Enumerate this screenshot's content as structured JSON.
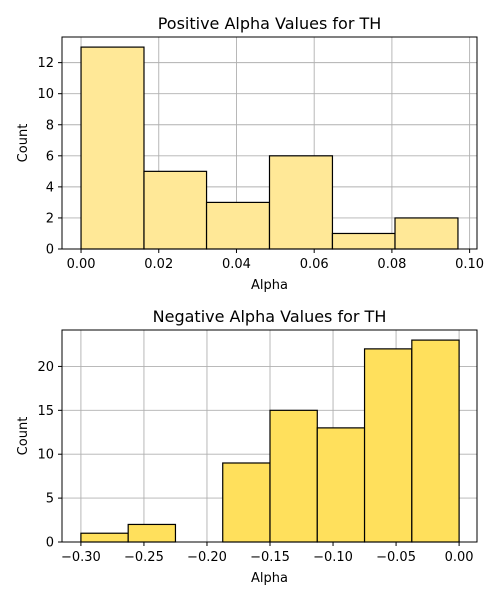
{
  "chart_data": [
    {
      "type": "bar",
      "title": "Positive Alpha Values for TH",
      "xlabel": "Alpha",
      "ylabel": "Count",
      "color": "#ffe897",
      "bins": [
        {
          "start": 0.0,
          "end": 0.0162,
          "count": 13
        },
        {
          "start": 0.0162,
          "end": 0.0323,
          "count": 5
        },
        {
          "start": 0.0323,
          "end": 0.0485,
          "count": 3
        },
        {
          "start": 0.0485,
          "end": 0.0647,
          "count": 6
        },
        {
          "start": 0.0647,
          "end": 0.0808,
          "count": 1
        },
        {
          "start": 0.0808,
          "end": 0.097,
          "count": 2
        }
      ],
      "xlim": [
        -0.0049,
        0.1019
      ],
      "ylim": [
        0,
        13.65
      ],
      "xticks": [
        0.0,
        0.02,
        0.04,
        0.06,
        0.08,
        0.1
      ],
      "xtick_labels": [
        "0.00",
        "0.02",
        "0.04",
        "0.06",
        "0.08",
        "0.10"
      ],
      "yticks": [
        0,
        2,
        4,
        6,
        8,
        10,
        12
      ],
      "ytick_labels": [
        "0",
        "2",
        "4",
        "6",
        "8",
        "10",
        "12"
      ],
      "grid": true
    },
    {
      "type": "bar",
      "title": "Negative Alpha Values for TH",
      "xlabel": "Alpha",
      "ylabel": "Count",
      "color": "#ffe05c",
      "bins": [
        {
          "start": -0.3,
          "end": -0.2625,
          "count": 1
        },
        {
          "start": -0.2625,
          "end": -0.225,
          "count": 2
        },
        {
          "start": -0.225,
          "end": -0.1875,
          "count": 0
        },
        {
          "start": -0.1875,
          "end": -0.15,
          "count": 9
        },
        {
          "start": -0.15,
          "end": -0.1125,
          "count": 15
        },
        {
          "start": -0.1125,
          "end": -0.075,
          "count": 13
        },
        {
          "start": -0.075,
          "end": -0.0375,
          "count": 22
        },
        {
          "start": -0.0375,
          "end": 0.0,
          "count": 23
        }
      ],
      "xlim": [
        -0.315,
        0.0142
      ],
      "ylim": [
        0,
        24.15
      ],
      "xticks": [
        -0.3,
        -0.25,
        -0.2,
        -0.15,
        -0.1,
        -0.05,
        0.0
      ],
      "xtick_labels": [
        "−0.30",
        "−0.25",
        "−0.20",
        "−0.15",
        "−0.10",
        "−0.05",
        "0.00"
      ],
      "yticks": [
        0,
        5,
        10,
        15,
        20
      ],
      "ytick_labels": [
        "0",
        "5",
        "10",
        "15",
        "20"
      ],
      "grid": true
    }
  ]
}
